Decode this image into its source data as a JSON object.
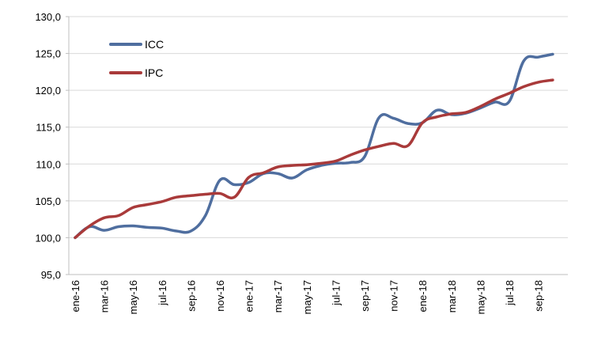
{
  "chart_data": {
    "type": "line",
    "title": "",
    "xlabel": "",
    "ylabel": "",
    "ylim": [
      95,
      130
    ],
    "yticks": [
      "95,0",
      "100,0",
      "105,0",
      "110,0",
      "115,0",
      "120,0",
      "125,0",
      "130,0"
    ],
    "ytick_values": [
      95,
      100,
      105,
      110,
      115,
      120,
      125,
      130
    ],
    "grid": "horizontal",
    "legend": "top-left",
    "x": [
      "ene-16",
      "feb-16",
      "mar-16",
      "abr-16",
      "may-16",
      "jun-16",
      "jul-16",
      "ago-16",
      "sep-16",
      "oct-16",
      "nov-16",
      "dic-16",
      "ene-17",
      "feb-17",
      "mar-17",
      "abr-17",
      "may-17",
      "jun-17",
      "jul-17",
      "ago-17",
      "sep-17",
      "oct-17",
      "nov-17",
      "dic-17",
      "ene-18",
      "feb-18",
      "mar-18",
      "abr-18",
      "may-18",
      "jun-18",
      "jul-18",
      "ago-18",
      "sep-18",
      "oct-18"
    ],
    "x_tick_labels": [
      "ene-16",
      "mar-16",
      "may-16",
      "jul-16",
      "sep-16",
      "nov-16",
      "ene-17",
      "mar-17",
      "may-17",
      "jul-17",
      "sep-17",
      "nov-17",
      "ene-18",
      "mar-18",
      "may-18",
      "jul-18",
      "sep-18"
    ],
    "series": [
      {
        "name": "ICC",
        "color": "#4f6e9f",
        "values": [
          100.0,
          101.5,
          101.0,
          101.5,
          101.6,
          101.4,
          101.3,
          100.9,
          100.9,
          103.0,
          107.8,
          107.2,
          107.5,
          108.7,
          108.7,
          108.1,
          109.2,
          109.8,
          110.1,
          110.2,
          111.0,
          116.3,
          116.2,
          115.5,
          115.6,
          117.3,
          116.7,
          116.9,
          117.6,
          118.4,
          118.5,
          124.0,
          124.5,
          124.9
        ]
      },
      {
        "name": "IPC",
        "color": "#a93a3a",
        "values": [
          100.0,
          101.6,
          102.7,
          103.0,
          104.1,
          104.5,
          104.9,
          105.5,
          105.7,
          105.9,
          106.0,
          105.5,
          108.2,
          108.8,
          109.6,
          109.8,
          109.9,
          110.1,
          110.4,
          111.2,
          111.9,
          112.4,
          112.8,
          112.5,
          115.6,
          116.4,
          116.8,
          117.0,
          117.8,
          118.8,
          119.6,
          120.5,
          121.1,
          121.4
        ]
      }
    ]
  }
}
